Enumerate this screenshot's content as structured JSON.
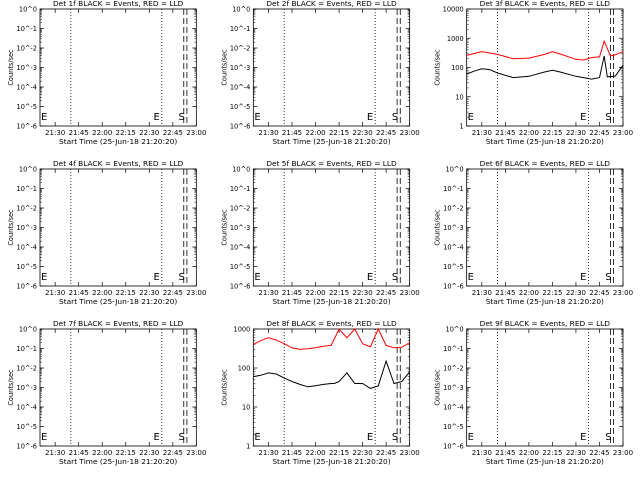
{
  "chart_data": [
    {
      "type": "line",
      "title": "Det 1f BLACK = Events, RED = LLD",
      "xlabel": "Start Time (25-Jun-18 21:20:20)",
      "ylabel": "Counts/sec",
      "x_ticks": [
        "21:30",
        "21:45",
        "22:00",
        "22:15",
        "22:30",
        "22:45",
        "23:00"
      ],
      "xlim": [
        "21:20:20",
        "23:00"
      ],
      "y_scale": "log",
      "y_ticks": [
        "10^0",
        "10^-1",
        "10^-2",
        "10^-3",
        "10^-4",
        "10^-5",
        "10^-6"
      ],
      "ylim": [
        1e-06,
        1
      ],
      "marker_lines": [
        {
          "time": "21:40",
          "style": "dotted"
        },
        {
          "time": "22:38",
          "style": "dotted",
          "label": "E"
        },
        {
          "time": "22:52",
          "style": "dashed"
        },
        {
          "time": "22:54",
          "style": "dashed",
          "label": "S"
        }
      ],
      "series": []
    },
    {
      "type": "line",
      "title": "Det 2f BLACK = Events, RED = LLD",
      "xlabel": "Start Time (25-Jun-18 21:20:20)",
      "ylabel": "Counts/sec",
      "x_ticks": [
        "21:30",
        "21:45",
        "22:00",
        "22:15",
        "22:30",
        "22:45",
        "23:00"
      ],
      "xlim": [
        "21:20:20",
        "23:00"
      ],
      "y_scale": "log",
      "y_ticks": [
        "10^0",
        "10^-1",
        "10^-2",
        "10^-3",
        "10^-4",
        "10^-5",
        "10^-6"
      ],
      "ylim": [
        1e-06,
        1
      ],
      "marker_lines": [
        {
          "time": "21:40",
          "style": "dotted"
        },
        {
          "time": "22:38",
          "style": "dotted",
          "label": "E"
        },
        {
          "time": "22:52",
          "style": "dashed"
        },
        {
          "time": "22:54",
          "style": "dashed",
          "label": "S"
        }
      ],
      "series": []
    },
    {
      "type": "line",
      "title": "Det 3f BLACK = Events, RED = LLD",
      "xlabel": "Start Time (25-Jun-18 21:20:20)",
      "ylabel": "Counts/sec",
      "x_ticks": [
        "21:30",
        "21:45",
        "22:00",
        "22:15",
        "22:30",
        "22:45",
        "23:00"
      ],
      "xlim": [
        "21:20:20",
        "23:00"
      ],
      "y_scale": "log",
      "y_ticks": [
        "1",
        "10",
        "100",
        "1000",
        "10000"
      ],
      "ylim": [
        1,
        10000
      ],
      "marker_lines": [
        {
          "time": "21:40",
          "style": "dotted"
        },
        {
          "time": "22:38",
          "style": "dotted",
          "label": "E"
        },
        {
          "time": "22:52",
          "style": "dashed"
        },
        {
          "time": "22:54",
          "style": "dashed",
          "label": "S"
        }
      ],
      "series": [
        {
          "color": "#ff0000",
          "x": [
            "21:20:20",
            "21:30",
            "21:40",
            "21:50",
            "22:00",
            "22:10",
            "22:15",
            "22:20",
            "22:30",
            "22:35",
            "22:40",
            "22:45",
            "22:48",
            "22:52",
            "22:55",
            "23:00"
          ],
          "y": [
            260,
            350,
            280,
            200,
            210,
            280,
            350,
            290,
            190,
            180,
            220,
            230,
            800,
            250,
            270,
            350
          ]
        },
        {
          "color": "#000000",
          "x": [
            "21:20:20",
            "21:25",
            "21:30",
            "21:35",
            "21:40",
            "21:50",
            "22:00",
            "22:10",
            "22:15",
            "22:20",
            "22:30",
            "22:40",
            "22:45",
            "22:48",
            "22:50",
            "22:55",
            "23:00"
          ],
          "y": [
            60,
            75,
            90,
            85,
            65,
            45,
            50,
            70,
            80,
            70,
            50,
            40,
            45,
            250,
            48,
            50,
            120
          ]
        }
      ]
    },
    {
      "type": "line",
      "title": "Det 4f BLACK = Events, RED = LLD",
      "xlabel": "Start Time (25-Jun-18 21:20:20)",
      "ylabel": "Counts/sec",
      "x_ticks": [
        "21:30",
        "21:45",
        "22:00",
        "22:15",
        "22:30",
        "22:45",
        "23:00"
      ],
      "xlim": [
        "21:20:20",
        "23:00"
      ],
      "y_scale": "log",
      "y_ticks": [
        "10^0",
        "10^-1",
        "10^-2",
        "10^-3",
        "10^-4",
        "10^-5",
        "10^-6"
      ],
      "ylim": [
        1e-06,
        1
      ],
      "marker_lines": [
        {
          "time": "21:40",
          "style": "dotted"
        },
        {
          "time": "22:38",
          "style": "dotted",
          "label": "E"
        },
        {
          "time": "22:52",
          "style": "dashed"
        },
        {
          "time": "22:54",
          "style": "dashed",
          "label": "S"
        }
      ],
      "series": []
    },
    {
      "type": "line",
      "title": "Det 5f BLACK = Events, RED = LLD",
      "xlabel": "Start Time (25-Jun-18 21:20:20)",
      "ylabel": "Counts/sec",
      "x_ticks": [
        "21:30",
        "21:45",
        "22:00",
        "22:15",
        "22:30",
        "22:45",
        "23:00"
      ],
      "xlim": [
        "21:20:20",
        "23:00"
      ],
      "y_scale": "log",
      "y_ticks": [
        "10^0",
        "10^-1",
        "10^-2",
        "10^-3",
        "10^-4",
        "10^-5",
        "10^-6"
      ],
      "ylim": [
        1e-06,
        1
      ],
      "marker_lines": [
        {
          "time": "21:40",
          "style": "dotted"
        },
        {
          "time": "22:38",
          "style": "dotted",
          "label": "E"
        },
        {
          "time": "22:52",
          "style": "dashed"
        },
        {
          "time": "22:54",
          "style": "dashed",
          "label": "S"
        }
      ],
      "series": []
    },
    {
      "type": "line",
      "title": "Det 6f BLACK = Events, RED = LLD",
      "xlabel": "Start Time (25-Jun-18 21:20:20)",
      "ylabel": "Counts/sec",
      "x_ticks": [
        "21:30",
        "21:45",
        "22:00",
        "22:15",
        "22:30",
        "22:45",
        "23:00"
      ],
      "xlim": [
        "21:20:20",
        "23:00"
      ],
      "y_scale": "log",
      "y_ticks": [
        "10^0",
        "10^-1",
        "10^-2",
        "10^-3",
        "10^-4",
        "10^-5",
        "10^-6"
      ],
      "ylim": [
        1e-06,
        1
      ],
      "marker_lines": [
        {
          "time": "21:40",
          "style": "dotted"
        },
        {
          "time": "22:38",
          "style": "dotted",
          "label": "E"
        },
        {
          "time": "22:52",
          "style": "dashed"
        },
        {
          "time": "22:54",
          "style": "dashed",
          "label": "S"
        }
      ],
      "series": []
    },
    {
      "type": "line",
      "title": "Det 7f BLACK = Events, RED = LLD",
      "xlabel": "Start Time (25-Jun-18 21:20:20)",
      "ylabel": "Counts/sec",
      "x_ticks": [
        "21:30",
        "21:45",
        "22:00",
        "22:15",
        "22:30",
        "22:45",
        "23:00"
      ],
      "xlim": [
        "21:20:20",
        "23:00"
      ],
      "y_scale": "log",
      "y_ticks": [
        "10^0",
        "10^-1",
        "10^-2",
        "10^-3",
        "10^-4",
        "10^-5",
        "10^-6"
      ],
      "ylim": [
        1e-06,
        1
      ],
      "marker_lines": [
        {
          "time": "21:40",
          "style": "dotted"
        },
        {
          "time": "22:38",
          "style": "dotted",
          "label": "E"
        },
        {
          "time": "22:52",
          "style": "dashed"
        },
        {
          "time": "22:54",
          "style": "dashed",
          "label": "S"
        }
      ],
      "series": []
    },
    {
      "type": "line",
      "title": "Det 8f BLACK = Events, RED = LLD",
      "xlabel": "Start Time (25-Jun-18 21:20:20)",
      "ylabel": "Counts/sec",
      "x_ticks": [
        "21:30",
        "21:45",
        "22:00",
        "22:15",
        "22:30",
        "22:45",
        "23:00"
      ],
      "xlim": [
        "21:20:20",
        "23:00"
      ],
      "y_scale": "log",
      "y_ticks": [
        "1",
        "10",
        "100",
        "1000"
      ],
      "ylim": [
        1,
        1000
      ],
      "marker_lines": [
        {
          "time": "21:40",
          "style": "dotted"
        },
        {
          "time": "22:38",
          "style": "dotted",
          "label": "E"
        },
        {
          "time": "22:52",
          "style": "dashed"
        },
        {
          "time": "22:54",
          "style": "dashed",
          "label": "S"
        }
      ],
      "series": [
        {
          "color": "#ff0000",
          "x": [
            "21:20:20",
            "21:25",
            "21:30",
            "21:35",
            "21:40",
            "21:45",
            "21:50",
            "21:55",
            "22:00",
            "22:05",
            "22:10",
            "22:15",
            "22:20",
            "22:25",
            "22:30",
            "22:35",
            "22:40",
            "22:45",
            "22:50",
            "22:55",
            "23:00"
          ],
          "y": [
            400,
            500,
            600,
            520,
            420,
            330,
            300,
            310,
            330,
            360,
            380,
            1000,
            600,
            1000,
            420,
            350,
            1000,
            380,
            330,
            340,
            450
          ]
        },
        {
          "color": "#000000",
          "x": [
            "21:20:20",
            "21:25",
            "21:30",
            "21:35",
            "21:40",
            "21:45",
            "21:50",
            "21:55",
            "22:00",
            "22:05",
            "22:10",
            "22:12",
            "22:15",
            "22:20",
            "22:25",
            "22:30",
            "22:35",
            "22:40",
            "22:45",
            "22:50",
            "22:55",
            "23:00"
          ],
          "y": [
            60,
            65,
            75,
            70,
            55,
            45,
            38,
            33,
            35,
            38,
            40,
            40,
            45,
            75,
            40,
            40,
            30,
            35,
            150,
            40,
            45,
            80
          ]
        }
      ]
    },
    {
      "type": "line",
      "title": "Det 9f BLACK = Events, RED = LLD",
      "xlabel": "Start Time (25-Jun-18 21:20:20)",
      "ylabel": "Counts/sec",
      "x_ticks": [
        "21:30",
        "21:45",
        "22:00",
        "22:15",
        "22:30",
        "22:45",
        "23:00"
      ],
      "xlim": [
        "21:20:20",
        "23:00"
      ],
      "y_scale": "log",
      "y_ticks": [
        "10^0",
        "10^-1",
        "10^-2",
        "10^-3",
        "10^-4",
        "10^-5",
        "10^-6"
      ],
      "ylim": [
        1e-06,
        1
      ],
      "marker_lines": [
        {
          "time": "21:40",
          "style": "dotted"
        },
        {
          "time": "22:38",
          "style": "dotted",
          "label": "E"
        },
        {
          "time": "22:52",
          "style": "dashed"
        },
        {
          "time": "22:54",
          "style": "dashed",
          "label": "S"
        }
      ],
      "series": []
    }
  ]
}
